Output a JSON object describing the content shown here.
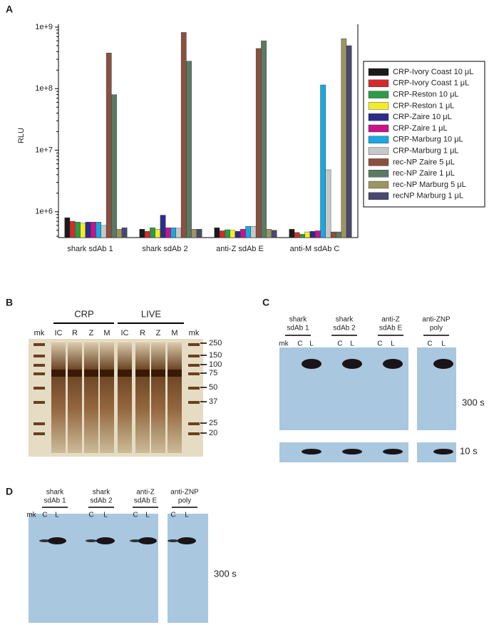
{
  "chart_data": {
    "type": "bar",
    "panel": "A",
    "y_label": "RLU",
    "log_y": true,
    "categories": [
      "shark sdAb 1",
      "shark sdAb 2",
      "anti-Z sdAb E",
      "anti-M sdAb C"
    ],
    "ylim": [
      380000,
      1000000000
    ],
    "yticks": [
      {
        "value": 1000000,
        "label": "1e+6"
      },
      {
        "value": 10000000,
        "label": "1e+7"
      },
      {
        "value": 100000000,
        "label": "1e+8"
      },
      {
        "value": 1000000000,
        "label": "1e+9"
      }
    ],
    "legend": "right",
    "series": [
      {
        "name": "CRP-Ivory Coast 10 μL",
        "color": "#1a1a1a",
        "values": [
          800000,
          520000,
          550000,
          520000
        ]
      },
      {
        "name": "CRP-Ivory Coast 1 μL",
        "color": "#d42a2a",
        "values": [
          700000,
          480000,
          490000,
          460000
        ]
      },
      {
        "name": "CRP-Reston 10 μL",
        "color": "#2e9a4a",
        "values": [
          680000,
          550000,
          510000,
          430000
        ]
      },
      {
        "name": "CRP-Reston 1 μL",
        "color": "#f3ec2a",
        "values": [
          650000,
          520000,
          500000,
          470000
        ]
      },
      {
        "name": "CRP-Zaire 10 μL",
        "color": "#2a2e8a",
        "values": [
          680000,
          880000,
          480000,
          480000
        ]
      },
      {
        "name": "CRP-Zaire 1 μL",
        "color": "#c8148c",
        "values": [
          680000,
          550000,
          520000,
          490000
        ]
      },
      {
        "name": "CRP-Marburg 10 μL",
        "color": "#1aa8e0",
        "values": [
          680000,
          550000,
          580000,
          115000000
        ]
      },
      {
        "name": "CRP-Marburg 1 μL",
        "color": "#c8c8c8",
        "values": [
          600000,
          540000,
          580000,
          4800000
        ]
      },
      {
        "name": "rec-NP Zaire 5 μL",
        "color": "#8a5040",
        "values": [
          380000000,
          820000000,
          450000000,
          470000
        ]
      },
      {
        "name": "rec-NP Zaire 1 μL",
        "color": "#5a7a64",
        "values": [
          80000000,
          280000000,
          600000000,
          470000
        ]
      },
      {
        "name": "rec-NP Marburg 5 μL",
        "color": "#9a9660",
        "values": [
          520000,
          520000,
          520000,
          650000000
        ]
      },
      {
        "name": "recNP Marburg 1 μL",
        "color": "#4a4870",
        "values": [
          550000,
          520000,
          500000,
          500000000
        ]
      }
    ]
  },
  "panel_b": {
    "label": "B",
    "groups": [
      "CRP",
      "LIVE"
    ],
    "lanes": [
      "mk",
      "IC",
      "R",
      "Z",
      "M",
      "IC",
      "R",
      "Z",
      "M",
      "mk"
    ],
    "markers": [
      "250",
      "150",
      "100",
      "75",
      "50",
      "37",
      "25",
      "20"
    ]
  },
  "panel_c": {
    "label": "C",
    "columns": [
      [
        "shark",
        "sdAb 1"
      ],
      [
        "shark",
        "sdAb 2"
      ],
      [
        "anti-Z",
        "sdAb E"
      ],
      [
        "anti-ZNP",
        "poly"
      ]
    ],
    "lanes": [
      "mk",
      "C",
      "L",
      "C",
      "L",
      "C",
      "L",
      "C",
      "L"
    ],
    "exposures": [
      "300 s",
      "10 s"
    ]
  },
  "panel_d": {
    "label": "D",
    "columns": [
      [
        "shark",
        "sdAb 1"
      ],
      [
        "shark",
        "sdAb 2"
      ],
      [
        "anti-Z",
        "sdAb E"
      ],
      [
        "anti-ZNP",
        "poly"
      ]
    ],
    "lanes": [
      "mk",
      "C",
      "L",
      "C",
      "L",
      "C",
      "L",
      "C",
      "L"
    ],
    "exposures": [
      "300 s"
    ]
  }
}
